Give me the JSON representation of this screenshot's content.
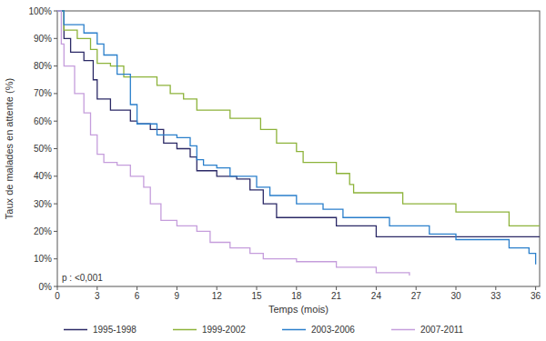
{
  "chart_data": {
    "type": "line",
    "line_style": "step",
    "x_label": "Temps (mois)",
    "y_label": "Taux de malades en attente (%)",
    "annotation": "p : <0,001",
    "legend": "bottom",
    "grid": false,
    "xlim": [
      0,
      36.3
    ],
    "ylim": [
      0,
      100
    ],
    "xticks": [
      0,
      3,
      6,
      9,
      12,
      15,
      18,
      21,
      24,
      27,
      30,
      33,
      36
    ],
    "yticks": [
      {
        "value": 0,
        "label": "0%"
      },
      {
        "value": 10,
        "label": "10%"
      },
      {
        "value": 20,
        "label": "20%"
      },
      {
        "value": 30,
        "label": "30%"
      },
      {
        "value": 40,
        "label": "40%"
      },
      {
        "value": 50,
        "label": "50%"
      },
      {
        "value": 60,
        "label": "60%"
      },
      {
        "value": 70,
        "label": "70%"
      },
      {
        "value": 80,
        "label": "80%"
      },
      {
        "value": 90,
        "label": "90%"
      },
      {
        "value": 100,
        "label": "100%"
      }
    ],
    "series": [
      {
        "name": "1995-1998",
        "color": "#2b2966",
        "x": [
          0,
          0.5,
          1,
          2,
          2.7,
          3,
          4,
          5.5,
          6,
          7,
          8,
          9,
          10,
          10.5,
          12,
          13.5,
          14.5,
          15.5,
          16.5,
          21,
          24,
          36.3
        ],
        "values": [
          100,
          90,
          85,
          82,
          75,
          68,
          64,
          60,
          59,
          57,
          52,
          50,
          47,
          42,
          40,
          39,
          35,
          30,
          25,
          22,
          18,
          18
        ]
      },
      {
        "name": "1999-2002",
        "color": "#8db33a",
        "x": [
          0,
          0.5,
          1.5,
          2.5,
          3,
          4,
          5,
          7.5,
          8.5,
          9.5,
          10.5,
          13,
          15.3,
          16.5,
          18,
          18.5,
          21,
          22,
          22.3,
          26,
          30,
          34,
          36.3
        ],
        "values": [
          100,
          93,
          90,
          86,
          81,
          80,
          76,
          73,
          70,
          68,
          64,
          61,
          57,
          52,
          49,
          45,
          41,
          37,
          34,
          30,
          27,
          22,
          22
        ]
      },
      {
        "name": "2003-2006",
        "color": "#2a7fcb",
        "x": [
          0,
          0.5,
          2,
          3,
          3.5,
          4.5,
          5.5,
          6,
          7.5,
          9,
          10,
          10.5,
          11,
          12,
          13,
          15,
          16,
          18,
          20,
          21.5,
          25,
          28,
          30,
          34,
          35.5,
          36
        ],
        "values": [
          100,
          95,
          92,
          88,
          84,
          77,
          66,
          59,
          55,
          54,
          51,
          46,
          44,
          43,
          40,
          36,
          33,
          30,
          28,
          25,
          22,
          19,
          17,
          14,
          12,
          8
        ]
      },
      {
        "name": "2007-2011",
        "color": "#c59ddc",
        "x": [
          0,
          0.3,
          0.5,
          1.3,
          2,
          2.5,
          3,
          3.5,
          4.5,
          5.5,
          6.5,
          7,
          7.8,
          9,
          10.5,
          11.5,
          13,
          14.5,
          15.5,
          18,
          21,
          24,
          26.5
        ],
        "values": [
          100,
          88,
          80,
          70,
          63,
          55,
          48,
          45,
          44,
          40,
          36,
          30,
          24,
          22,
          20,
          16,
          14,
          12,
          10,
          9,
          7,
          5,
          4
        ]
      }
    ]
  }
}
